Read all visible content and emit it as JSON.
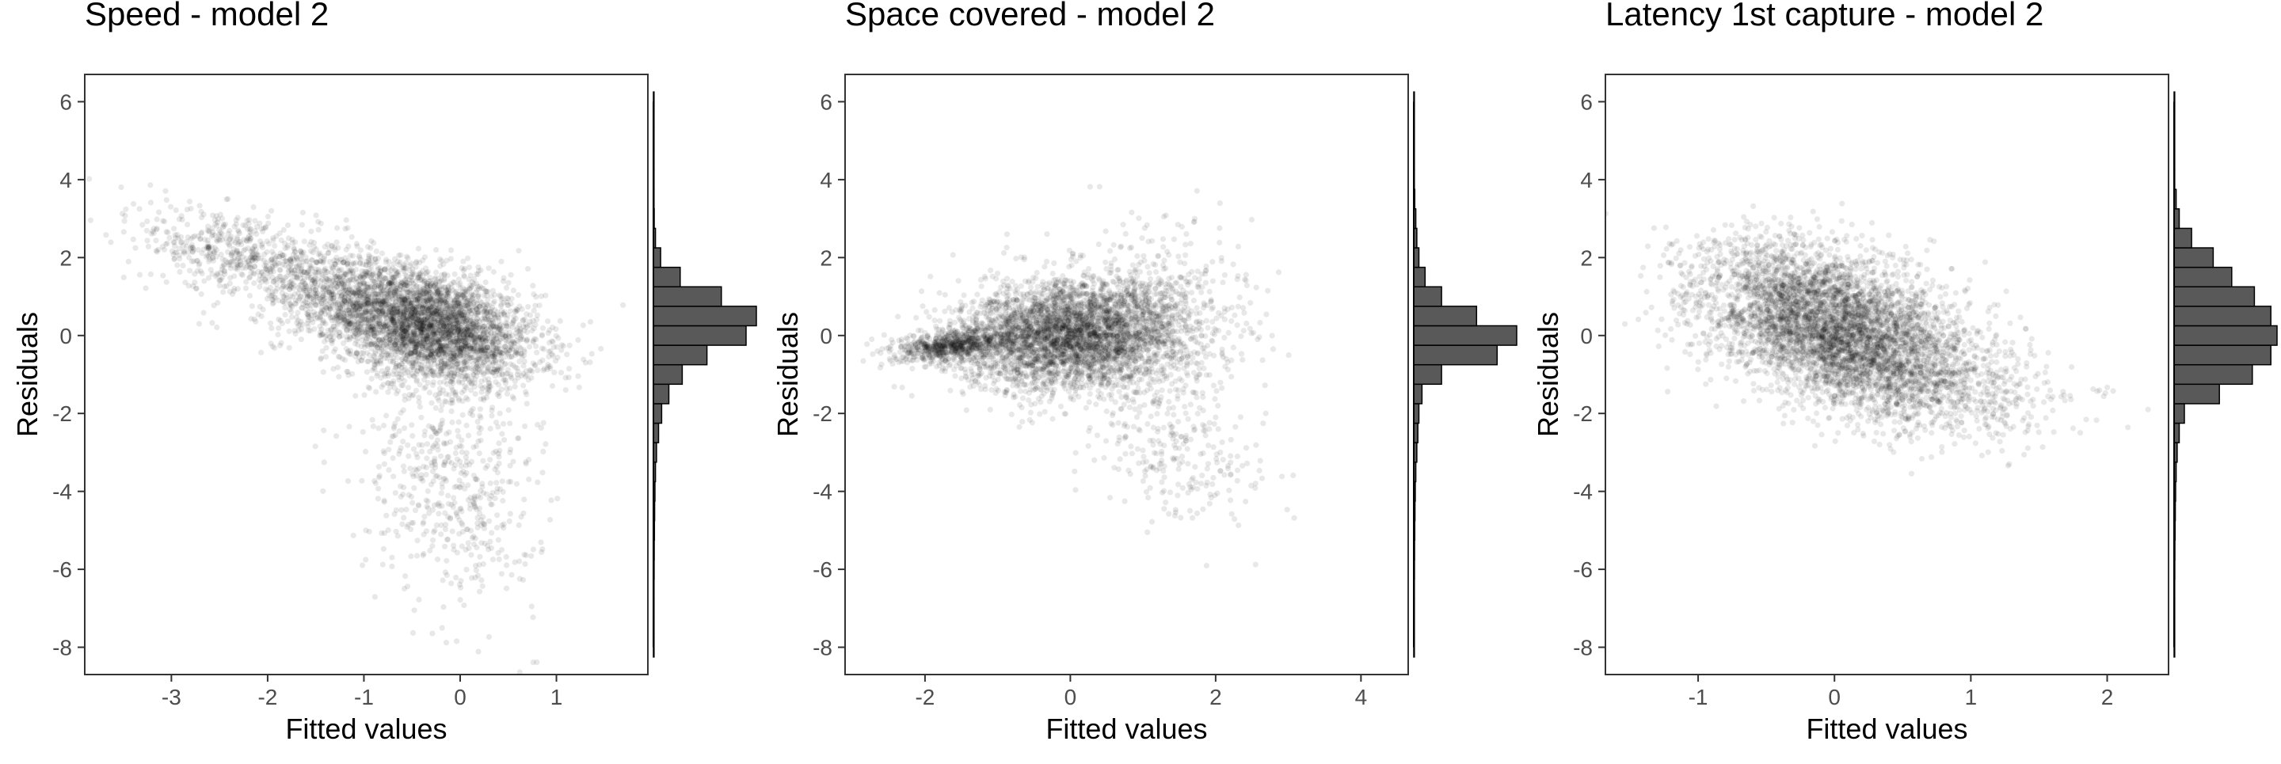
{
  "chart_data": [
    {
      "type": "scatter",
      "title": "Speed - model 2",
      "xlabel": "Fitted values",
      "ylabel": "Residuals",
      "xlim": [
        -3.9,
        1.95
      ],
      "ylim": [
        -8.7,
        6.7
      ],
      "xticks": [
        -3,
        -2,
        -1,
        0,
        1
      ],
      "yticks": [
        -8,
        -6,
        -4,
        -2,
        0,
        2,
        4,
        6
      ],
      "grid": false,
      "cloud": [
        {
          "x": -0.3,
          "y": 0.2,
          "sx": 0.55,
          "sy": 0.75,
          "rho": -0.35,
          "w": 0.62
        },
        {
          "x": -1.1,
          "y": 1.0,
          "sx": 0.6,
          "sy": 0.7,
          "rho": -0.45,
          "w": 0.2
        },
        {
          "x": -0.1,
          "y": -3.8,
          "sx": 0.45,
          "sy": 1.5,
          "rho": -0.2,
          "w": 0.1
        },
        {
          "x": -2.4,
          "y": 2.2,
          "sx": 0.45,
          "sy": 0.6,
          "rho": -0.3,
          "w": 0.08
        }
      ],
      "histogram": {
        "bins": [
          {
            "y": -8.0,
            "count": 0.004
          },
          {
            "y": -7.5,
            "count": 0.005
          },
          {
            "y": -7.0,
            "count": 0.006
          },
          {
            "y": -6.5,
            "count": 0.006
          },
          {
            "y": -6.0,
            "count": 0.007
          },
          {
            "y": -5.5,
            "count": 0.008
          },
          {
            "y": -5.0,
            "count": 0.01
          },
          {
            "y": -4.5,
            "count": 0.012
          },
          {
            "y": -4.0,
            "count": 0.015
          },
          {
            "y": -3.5,
            "count": 0.02
          },
          {
            "y": -3.0,
            "count": 0.03
          },
          {
            "y": -2.5,
            "count": 0.05
          },
          {
            "y": -2.0,
            "count": 0.08
          },
          {
            "y": -1.5,
            "count": 0.15
          },
          {
            "y": -1.0,
            "count": 0.28
          },
          {
            "y": -0.5,
            "count": 0.52
          },
          {
            "y": 0.0,
            "count": 0.9
          },
          {
            "y": 0.5,
            "count": 1.0
          },
          {
            "y": 1.0,
            "count": 0.66
          },
          {
            "y": 1.5,
            "count": 0.26
          },
          {
            "y": 2.0,
            "count": 0.07
          },
          {
            "y": 2.5,
            "count": 0.02
          },
          {
            "y": 3.0,
            "count": 0.008
          },
          {
            "y": 3.5,
            "count": 0.004
          },
          {
            "y": 4.0,
            "count": 0.003
          },
          {
            "y": 4.5,
            "count": 0.003
          },
          {
            "y": 5.0,
            "count": 0.003
          },
          {
            "y": 5.5,
            "count": 0.003
          },
          {
            "y": 6.0,
            "count": 0.002
          }
        ]
      }
    },
    {
      "type": "scatter",
      "title": "Space covered - model 2",
      "xlabel": "Fitted values",
      "ylabel": "Residuals",
      "xlim": [
        -3.1,
        4.65
      ],
      "ylim": [
        -8.7,
        6.7
      ],
      "xticks": [
        -2,
        0,
        2,
        4
      ],
      "yticks": [
        -8,
        -6,
        -4,
        -2,
        0,
        2,
        4,
        6
      ],
      "grid": false,
      "cloud": [
        {
          "x": 0.0,
          "y": 0.0,
          "sx": 0.75,
          "sy": 0.7,
          "rho": 0.1,
          "w": 0.7
        },
        {
          "x": -1.6,
          "y": -0.25,
          "sx": 0.4,
          "sy": 0.22,
          "rho": 0.4,
          "w": 0.14
        },
        {
          "x": 1.2,
          "y": 0.3,
          "sx": 0.6,
          "sy": 1.2,
          "rho": 0.0,
          "w": 0.12
        },
        {
          "x": 1.6,
          "y": -3.2,
          "sx": 0.6,
          "sy": 0.8,
          "rho": -0.3,
          "w": 0.04
        }
      ],
      "histogram": {
        "bins": [
          {
            "y": -8.0,
            "count": 0.004
          },
          {
            "y": -7.5,
            "count": 0.005
          },
          {
            "y": -7.0,
            "count": 0.006
          },
          {
            "y": -6.5,
            "count": 0.006
          },
          {
            "y": -6.0,
            "count": 0.007
          },
          {
            "y": -5.5,
            "count": 0.008
          },
          {
            "y": -5.0,
            "count": 0.01
          },
          {
            "y": -4.5,
            "count": 0.012
          },
          {
            "y": -4.0,
            "count": 0.015
          },
          {
            "y": -3.5,
            "count": 0.02
          },
          {
            "y": -3.0,
            "count": 0.03
          },
          {
            "y": -2.5,
            "count": 0.04
          },
          {
            "y": -2.0,
            "count": 0.05
          },
          {
            "y": -1.5,
            "count": 0.08
          },
          {
            "y": -1.0,
            "count": 0.27
          },
          {
            "y": -0.5,
            "count": 0.81
          },
          {
            "y": 0.0,
            "count": 1.0
          },
          {
            "y": 0.5,
            "count": 0.61
          },
          {
            "y": 1.0,
            "count": 0.27
          },
          {
            "y": 1.5,
            "count": 0.11
          },
          {
            "y": 2.0,
            "count": 0.05
          },
          {
            "y": 2.5,
            "count": 0.03
          },
          {
            "y": 3.0,
            "count": 0.02
          },
          {
            "y": 3.5,
            "count": 0.01
          },
          {
            "y": 4.0,
            "count": 0.005
          },
          {
            "y": 4.5,
            "count": 0.004
          },
          {
            "y": 5.0,
            "count": 0.003
          },
          {
            "y": 5.5,
            "count": 0.003
          },
          {
            "y": 6.0,
            "count": 0.002
          }
        ]
      }
    },
    {
      "type": "scatter",
      "title": "Latency 1st capture - model 2",
      "xlabel": "Fitted values",
      "ylabel": "Residuals",
      "xlim": [
        -1.68,
        2.45
      ],
      "ylim": [
        -8.7,
        6.7
      ],
      "xticks": [
        -1,
        0,
        1,
        2
      ],
      "yticks": [
        -8,
        -6,
        -4,
        -2,
        0,
        2,
        4,
        6
      ],
      "grid": false,
      "cloud": [
        {
          "x": 0.05,
          "y": 0.0,
          "sx": 0.5,
          "sy": 0.95,
          "rho": -0.4,
          "w": 0.82
        },
        {
          "x": -0.2,
          "y": 1.5,
          "sx": 0.45,
          "sy": 0.7,
          "rho": -0.3,
          "w": 0.1
        },
        {
          "x": 0.9,
          "y": -1.5,
          "sx": 0.5,
          "sy": 0.6,
          "rho": -0.2,
          "w": 0.08
        }
      ],
      "histogram": {
        "bins": [
          {
            "y": -8.0,
            "count": 0.004
          },
          {
            "y": -7.5,
            "count": 0.005
          },
          {
            "y": -7.0,
            "count": 0.006
          },
          {
            "y": -6.5,
            "count": 0.006
          },
          {
            "y": -6.0,
            "count": 0.007
          },
          {
            "y": -5.5,
            "count": 0.008
          },
          {
            "y": -5.0,
            "count": 0.01
          },
          {
            "y": -4.5,
            "count": 0.012
          },
          {
            "y": -4.0,
            "count": 0.015
          },
          {
            "y": -3.5,
            "count": 0.02
          },
          {
            "y": -3.0,
            "count": 0.03
          },
          {
            "y": -2.5,
            "count": 0.05
          },
          {
            "y": -2.0,
            "count": 0.1
          },
          {
            "y": -1.5,
            "count": 0.44
          },
          {
            "y": -1.0,
            "count": 0.76
          },
          {
            "y": -0.5,
            "count": 0.94
          },
          {
            "y": 0.0,
            "count": 1.0
          },
          {
            "y": 0.5,
            "count": 0.94
          },
          {
            "y": 1.0,
            "count": 0.78
          },
          {
            "y": 1.5,
            "count": 0.56
          },
          {
            "y": 2.0,
            "count": 0.38
          },
          {
            "y": 2.5,
            "count": 0.17
          },
          {
            "y": 3.0,
            "count": 0.05
          },
          {
            "y": 3.5,
            "count": 0.02
          },
          {
            "y": 4.0,
            "count": 0.005
          },
          {
            "y": 4.5,
            "count": 0.003
          },
          {
            "y": 5.0,
            "count": 0.003
          },
          {
            "y": 5.5,
            "count": 0.003
          },
          {
            "y": 6.0,
            "count": 0.002
          }
        ]
      }
    }
  ],
  "style": {
    "point_color": "#000000",
    "bar_fill": "#595959",
    "bar_stroke": "#000000",
    "axis_color": "#333333",
    "tick_label_color": "#4d4d4d",
    "text_color": "#000000"
  }
}
